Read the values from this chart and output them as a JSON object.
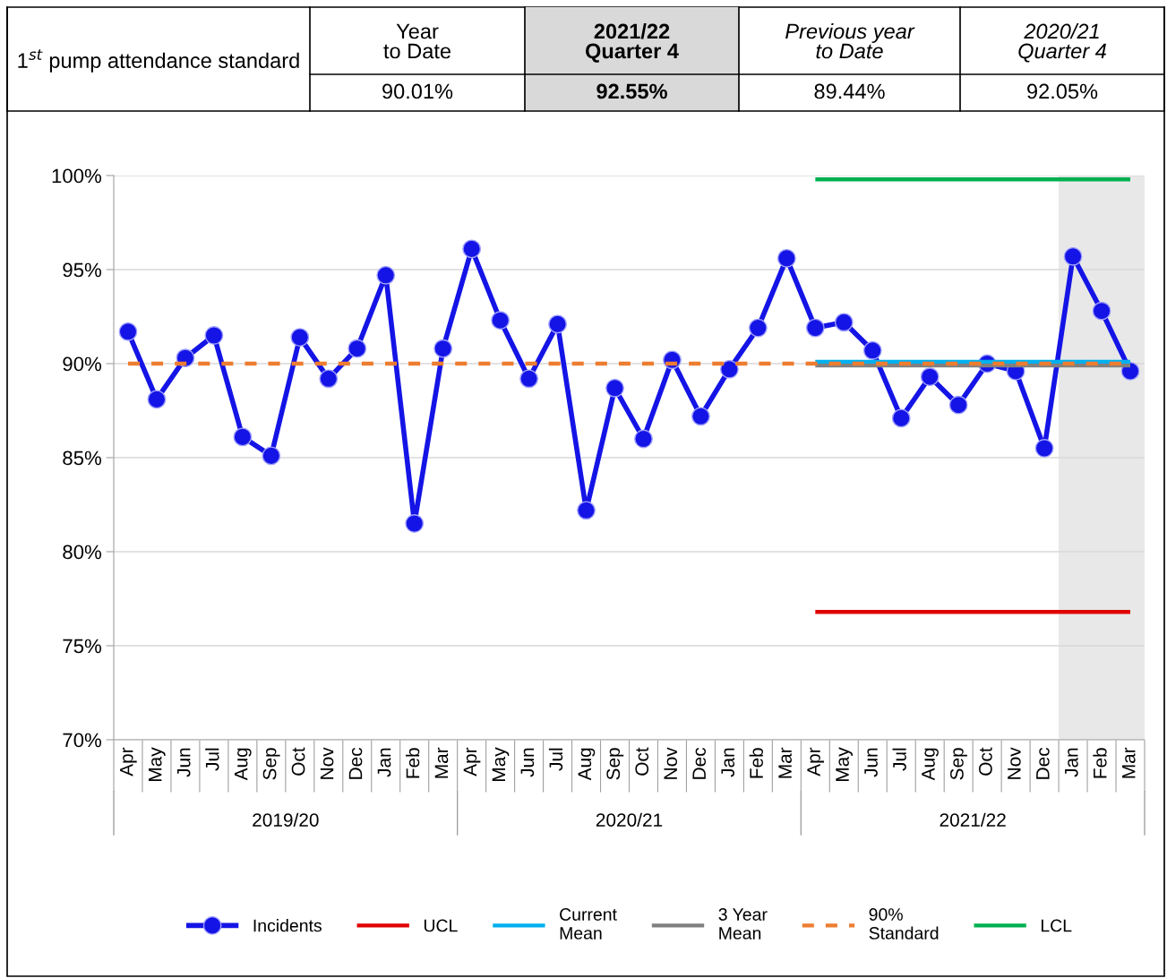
{
  "chart_data": {
    "type": "line",
    "title": "1$^{st}$ pump attendance standard",
    "annotations": [
      "Year to Date",
      "2021/22 Quarter 4",
      "Previous year to Date",
      "2020/21 Quarter 4",
      "90.01%",
      "92.55%",
      "89.44%",
      "92.05%",
      "2019/20",
      "2020/21",
      "2021/22"
    ],
    "categories": [
      "Apr",
      "May",
      "Jun",
      "Jul",
      "Aug",
      "Sep",
      "Oct",
      "Nov",
      "Dec",
      "Jan",
      "Feb",
      "Mar",
      "Apr",
      "May",
      "Jun",
      "Jul",
      "Aug",
      "Sep",
      "Oct",
      "Nov",
      "Dec",
      "Jan",
      "Feb",
      "Mar",
      "Apr",
      "May",
      "Jun",
      "Jul",
      "Aug",
      "Sep",
      "Oct",
      "Nov",
      "Dec",
      "Jan",
      "Feb",
      "Mar"
    ],
    "series": [
      {
        "name": "Incidents",
        "color": "#1414e6",
        "marker": "circle",
        "line_style": "solid",
        "values": [
          91.7,
          88.1,
          90.3,
          91.5,
          86.1,
          85.1,
          91.4,
          89.2,
          90.8,
          94.7,
          81.5,
          90.8,
          96.1,
          92.3,
          89.2,
          92.1,
          82.2,
          88.7,
          86.0,
          90.2,
          87.2,
          89.7,
          91.9,
          95.6,
          91.9,
          92.2,
          90.7,
          87.1,
          89.3,
          87.8,
          90.0,
          89.6,
          85.5,
          95.7,
          92.8,
          89.6
        ]
      },
      {
        "name": "UCL",
        "color": "#e00000",
        "marker": "none",
        "line_style": "solid",
        "values": [
          null,
          null,
          null,
          null,
          null,
          null,
          null,
          null,
          null,
          null,
          null,
          null,
          null,
          null,
          null,
          null,
          null,
          null,
          null,
          null,
          null,
          null,
          null,
          null,
          76.8,
          76.8,
          76.8,
          76.8,
          76.8,
          76.8,
          76.8,
          76.8,
          76.8,
          76.8,
          76.8,
          76.8
        ]
      },
      {
        "name": "Current Mean",
        "color": "#00b0f0",
        "marker": "none",
        "line_style": "solid",
        "values": [
          null,
          null,
          null,
          null,
          null,
          null,
          null,
          null,
          null,
          null,
          null,
          null,
          null,
          null,
          null,
          null,
          null,
          null,
          null,
          null,
          null,
          null,
          null,
          null,
          90.1,
          90.1,
          90.1,
          90.1,
          90.1,
          90.1,
          90.1,
          90.1,
          90.1,
          90.1,
          90.1,
          90.1
        ]
      },
      {
        "name": "3 Year Mean",
        "color": "#808080",
        "marker": "none",
        "line_style": "solid",
        "values": [
          null,
          null,
          null,
          null,
          null,
          null,
          null,
          null,
          null,
          null,
          null,
          null,
          null,
          null,
          null,
          null,
          null,
          null,
          null,
          null,
          null,
          null,
          null,
          null,
          89.9,
          89.9,
          89.9,
          89.9,
          89.9,
          89.9,
          89.9,
          89.9,
          89.9,
          89.9,
          89.9,
          89.9
        ]
      },
      {
        "name": "90% Standard",
        "color": "#ed7d31",
        "marker": "none",
        "line_style": "dashed",
        "values": [
          90,
          90,
          90,
          90,
          90,
          90,
          90,
          90,
          90,
          90,
          90,
          90,
          90,
          90,
          90,
          90,
          90,
          90,
          90,
          90,
          90,
          90,
          90,
          90,
          90,
          90,
          90,
          90,
          90,
          90,
          90,
          90,
          90,
          90,
          90,
          90
        ]
      },
      {
        "name": "LCL",
        "color": "#00b050",
        "marker": "none",
        "line_style": "solid",
        "values": [
          null,
          null,
          null,
          null,
          null,
          null,
          null,
          null,
          null,
          null,
          null,
          null,
          null,
          null,
          null,
          null,
          null,
          null,
          null,
          null,
          null,
          null,
          null,
          null,
          99.8,
          99.8,
          99.8,
          99.8,
          99.8,
          99.8,
          99.8,
          99.8,
          99.8,
          99.8,
          99.8,
          99.8
        ]
      }
    ],
    "ylim": [
      70,
      100
    ],
    "yticks": [
      {
        "value": 70,
        "label": "70%"
      },
      {
        "value": 75,
        "label": "75%"
      },
      {
        "value": 80,
        "label": "80%"
      },
      {
        "value": 85,
        "label": "85%"
      },
      {
        "value": 90,
        "label": "90%"
      },
      {
        "value": 95,
        "label": "95%"
      },
      {
        "value": 100,
        "label": "100%"
      }
    ],
    "grid": "y",
    "legend": "bottom"
  }
}
